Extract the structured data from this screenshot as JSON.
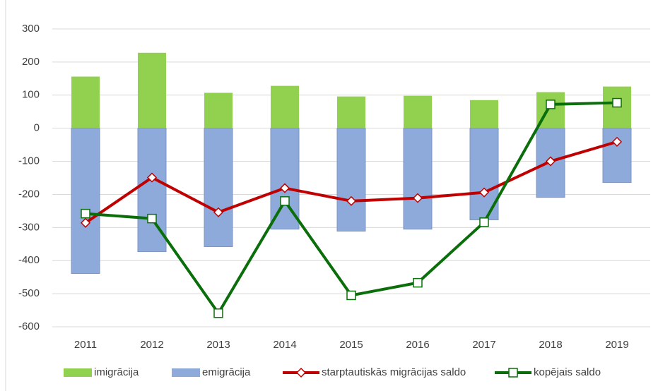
{
  "chart_data": {
    "type": "bar",
    "categories": [
      "2011",
      "2012",
      "2013",
      "2014",
      "2015",
      "2016",
      "2017",
      "2018",
      "2019"
    ],
    "series": [
      {
        "name": "imigrācija",
        "type": "bar",
        "color": "#92d050",
        "values": [
          156,
          228,
          107,
          128,
          96,
          98,
          85,
          109,
          126
        ]
      },
      {
        "name": "emigrācija",
        "type": "bar",
        "color": "#8eaadb",
        "values": [
          -439,
          -373,
          -358,
          -305,
          -311,
          -305,
          -277,
          -209,
          -164
        ]
      },
      {
        "name": "starptautiskās migrācijas saldo",
        "type": "line",
        "marker": "diamond",
        "color": "#c00000",
        "values": [
          -286,
          -149,
          -254,
          -181,
          -220,
          -211,
          -194,
          -100,
          -41
        ]
      },
      {
        "name": "kopējais saldo",
        "type": "line",
        "marker": "square",
        "color": "#0a6e0a",
        "values": [
          -258,
          -273,
          -559,
          -220,
          -505,
          -467,
          -284,
          72,
          77
        ]
      }
    ],
    "ylim": [
      -600,
      300
    ],
    "yticks": [
      -600,
      -500,
      -400,
      -300,
      -200,
      -100,
      0,
      100,
      200,
      300
    ],
    "grid": true,
    "legend": "bottom"
  }
}
